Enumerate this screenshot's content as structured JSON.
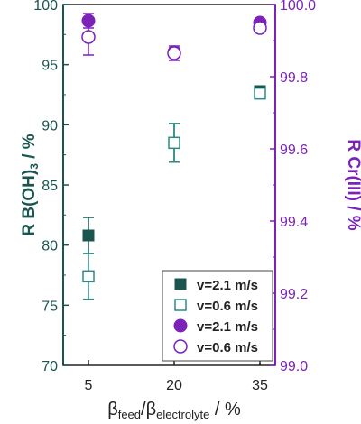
{
  "chart_data": {
    "type": "scatter",
    "x_categories": [
      "5",
      "20",
      "35"
    ],
    "xlabel": {
      "beta1": "β",
      "sub1": "feed",
      "sep": "/",
      "beta2": "β",
      "sub2": "electrolyte",
      "unit": " / %"
    },
    "ylabel_left": {
      "prefix": "R B(OH)",
      "sub": "3",
      "unit": "  /  %"
    },
    "ylabel_right": "R Cr(III)  /  %",
    "y_left": {
      "lim": [
        70,
        100
      ],
      "ticks": [
        "70",
        "75",
        "80",
        "85",
        "90",
        "95",
        "100"
      ]
    },
    "y_right": {
      "lim": [
        99.0,
        100.0
      ],
      "ticks": [
        "99.0",
        "99.2",
        "99.4",
        "99.6",
        "99.8",
        "100.0"
      ]
    },
    "series": [
      {
        "name": "v=2.1 m/s",
        "axis": "left",
        "marker": "square",
        "filled": true,
        "color": "#1a5550",
        "points": [
          {
            "x": "5",
            "y": 80.8,
            "err": 1.5
          },
          {
            "x": "20",
            "y": 88.5,
            "err": 1.6
          },
          {
            "x": "35",
            "y": 92.8,
            "err": 0.2
          }
        ]
      },
      {
        "name": "v=0.6 m/s",
        "axis": "left",
        "marker": "square",
        "filled": false,
        "color": "#2a8c85",
        "points": [
          {
            "x": "5",
            "y": 77.4,
            "err": 1.9
          },
          {
            "x": "20",
            "y": 88.5,
            "err": 1.6
          },
          {
            "x": "35",
            "y": 92.6,
            "err": 0.3
          }
        ]
      },
      {
        "name": "v=2.1 m/s",
        "axis": "right",
        "marker": "circle",
        "filled": true,
        "color": "#7b22b8",
        "points": [
          {
            "x": "5",
            "y": 99.955,
            "err": 0.02
          },
          {
            "x": "20",
            "y": 99.868,
            "err": 0.012
          },
          {
            "x": "35",
            "y": 99.95,
            "err": 0.005
          }
        ]
      },
      {
        "name": "v=0.6 m/s",
        "axis": "right",
        "marker": "circle",
        "filled": false,
        "color": "#7b22b8",
        "points": [
          {
            "x": "5",
            "y": 99.91,
            "err": 0.05
          },
          {
            "x": "20",
            "y": 99.865,
            "err": 0.02
          },
          {
            "x": "35",
            "y": 99.935,
            "err": 0.01
          }
        ]
      }
    ],
    "legend_position": "bottom-right",
    "grid": false,
    "colors": {
      "left_axis": "#1a5550",
      "right_axis": "#7b22b8"
    }
  }
}
